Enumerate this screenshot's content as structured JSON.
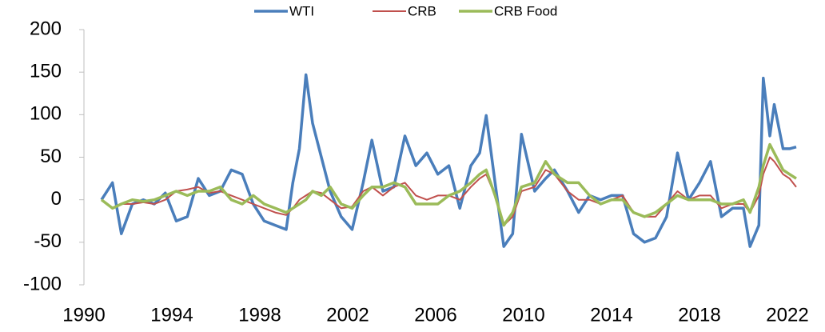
{
  "chart_data": {
    "type": "line",
    "x": [
      1990.8,
      1991.3,
      1991.7,
      1992.2,
      1992.7,
      1993.2,
      1993.7,
      1994.2,
      1994.7,
      1995.2,
      1995.7,
      1996.2,
      1996.7,
      1997.2,
      1997.7,
      1998.2,
      1998.7,
      1999.2,
      1999.5,
      1999.8,
      2000.1,
      2000.4,
      2000.8,
      2001.2,
      2001.7,
      2002.2,
      2002.7,
      2003.1,
      2003.6,
      2004.1,
      2004.6,
      2005.1,
      2005.6,
      2006.1,
      2006.6,
      2007.1,
      2007.6,
      2008.0,
      2008.3,
      2008.7,
      2009.1,
      2009.5,
      2009.9,
      2010.5,
      2011.0,
      2011.4,
      2012.0,
      2012.5,
      2013.0,
      2013.5,
      2014.0,
      2014.5,
      2015.0,
      2015.5,
      2016.0,
      2016.5,
      2017.0,
      2017.5,
      2018.0,
      2018.5,
      2019.0,
      2019.5,
      2020.0,
      2020.3,
      2020.7,
      2020.9,
      2021.2,
      2021.4,
      2021.8,
      2022.1,
      2022.4
    ],
    "series": [
      {
        "name": "WTI",
        "color": "#4a7ebb",
        "values": [
          0,
          20,
          -40,
          -5,
          0,
          -5,
          8,
          -25,
          -20,
          25,
          5,
          10,
          35,
          30,
          -5,
          -25,
          -30,
          -35,
          20,
          60,
          147,
          90,
          50,
          10,
          -20,
          -35,
          20,
          70,
          10,
          15,
          75,
          40,
          55,
          30,
          40,
          -10,
          40,
          55,
          99,
          20,
          -55,
          -40,
          77,
          10,
          25,
          35,
          10,
          -15,
          5,
          0,
          5,
          5,
          -40,
          -50,
          -45,
          -20,
          55,
          0,
          20,
          45,
          -20,
          -10,
          -10,
          -55,
          -30,
          143,
          75,
          112,
          60,
          60,
          62
        ]
      },
      {
        "name": "CRB",
        "color": "#c0504d",
        "values": [
          0,
          -10,
          -5,
          -5,
          -3,
          -5,
          0,
          10,
          12,
          15,
          8,
          10,
          5,
          0,
          -5,
          -10,
          -15,
          -18,
          -10,
          0,
          5,
          10,
          8,
          0,
          -10,
          -8,
          10,
          15,
          5,
          15,
          20,
          5,
          0,
          5,
          5,
          0,
          15,
          25,
          30,
          5,
          -30,
          -20,
          10,
          15,
          35,
          30,
          10,
          0,
          0,
          -5,
          0,
          5,
          -15,
          -20,
          -20,
          -5,
          10,
          0,
          5,
          5,
          -10,
          -5,
          -5,
          -15,
          5,
          30,
          50,
          45,
          30,
          25,
          15
        ]
      },
      {
        "name": "CRB Food",
        "color": "#9bbb59",
        "values": [
          0,
          -10,
          -5,
          0,
          -2,
          0,
          5,
          10,
          5,
          10,
          10,
          15,
          0,
          -5,
          5,
          -5,
          -10,
          -15,
          -10,
          -5,
          0,
          10,
          5,
          15,
          -5,
          -10,
          5,
          15,
          15,
          20,
          15,
          -5,
          -5,
          -5,
          5,
          10,
          20,
          30,
          35,
          5,
          -30,
          -15,
          15,
          20,
          45,
          30,
          20,
          20,
          5,
          -5,
          0,
          0,
          -15,
          -20,
          -15,
          -5,
          5,
          0,
          0,
          0,
          -5,
          -5,
          0,
          -15,
          15,
          40,
          65,
          55,
          35,
          30,
          25
        ]
      }
    ],
    "xlim": [
      1990,
      2022
    ],
    "xticks": [
      1990,
      1994,
      1998,
      2002,
      2006,
      2010,
      2014,
      2018,
      2022
    ],
    "ylim": [
      -100,
      200
    ],
    "yticks": [
      -100,
      -50,
      0,
      50,
      100,
      150,
      200
    ],
    "legend": "top"
  }
}
